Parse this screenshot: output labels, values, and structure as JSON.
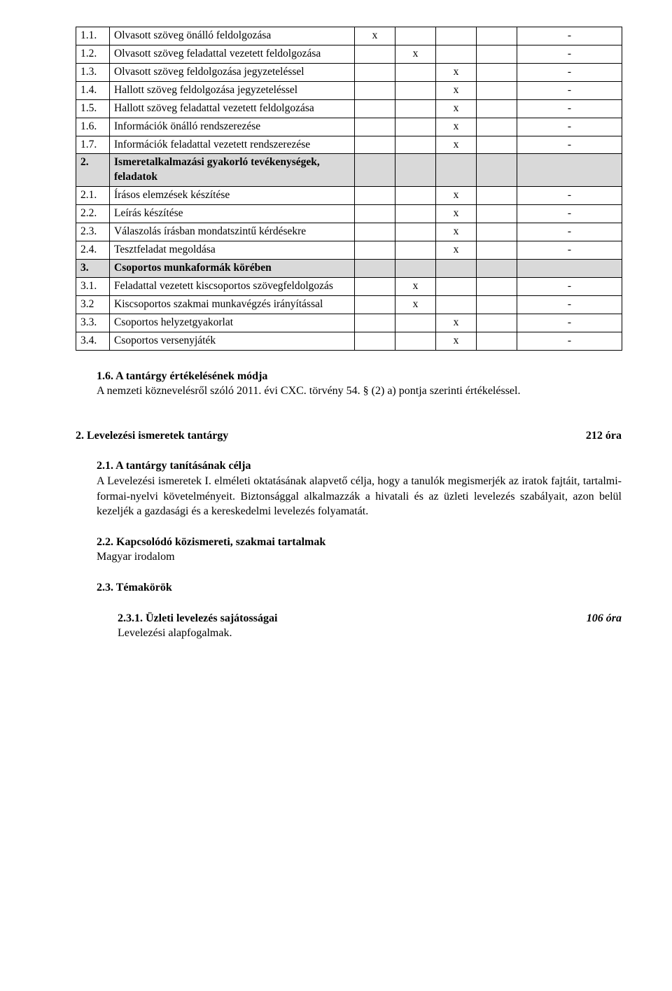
{
  "table": {
    "rows": [
      {
        "num": "1.1.",
        "desc": "Olvasott szöveg önálló feldolgozása",
        "c1": "x",
        "c2": "",
        "c3": "",
        "c4": "",
        "c5": "-"
      },
      {
        "num": "1.2.",
        "desc": "Olvasott szöveg feladattal vezetett feldolgozása",
        "c1": "",
        "c2": "x",
        "c3": "",
        "c4": "",
        "c5": "-"
      },
      {
        "num": "1.3.",
        "desc": "Olvasott szöveg feldolgozása jegyzeteléssel",
        "c1": "",
        "c2": "",
        "c3": "x",
        "c4": "",
        "c5": "-"
      },
      {
        "num": "1.4.",
        "desc": "Hallott szöveg feldolgozása jegyzeteléssel",
        "c1": "",
        "c2": "",
        "c3": "x",
        "c4": "",
        "c5": "-"
      },
      {
        "num": "1.5.",
        "desc": "Hallott szöveg feladattal vezetett feldolgozása",
        "c1": "",
        "c2": "",
        "c3": "x",
        "c4": "",
        "c5": "-"
      },
      {
        "num": "1.6.",
        "desc": "Információk önálló rendszerezése",
        "c1": "",
        "c2": "",
        "c3": "x",
        "c4": "",
        "c5": "-"
      },
      {
        "num": "1.7.",
        "desc": "Információk feladattal vezetett rendszerezése",
        "c1": "",
        "c2": "",
        "c3": "x",
        "c4": "",
        "c5": "-"
      },
      {
        "shaded": true,
        "num": "2.",
        "desc": "Ismeretalkalmazási gyakorló tevékenységek, feladatok",
        "c1": "",
        "c2": "",
        "c3": "",
        "c4": "",
        "c5": ""
      },
      {
        "num": "2.1.",
        "desc": "Írásos elemzések készítése",
        "c1": "",
        "c2": "",
        "c3": "x",
        "c4": "",
        "c5": "-"
      },
      {
        "num": "2.2.",
        "desc": "Leírás készítése",
        "c1": "",
        "c2": "",
        "c3": "x",
        "c4": "",
        "c5": "-"
      },
      {
        "num": "2.3.",
        "desc": "Válaszolás írásban mondatszintű kérdésekre",
        "c1": "",
        "c2": "",
        "c3": "x",
        "c4": "",
        "c5": "-"
      },
      {
        "num": "2.4.",
        "desc": "Tesztfeladat megoldása",
        "c1": "",
        "c2": "",
        "c3": "x",
        "c4": "",
        "c5": "-"
      },
      {
        "shaded": true,
        "num": "3.",
        "desc": "Csoportos munkaformák körében",
        "c1": "",
        "c2": "",
        "c3": "",
        "c4": "",
        "c5": ""
      },
      {
        "num": "3.1.",
        "desc": "Feladattal vezetett kiscsoportos szövegfeldolgozás",
        "c1": "",
        "c2": "x",
        "c3": "",
        "c4": "",
        "c5": "-"
      },
      {
        "num": "3.2",
        "desc": "Kiscsoportos szakmai munkavégzés irányítással",
        "c1": "",
        "c2": "x",
        "c3": "",
        "c4": "",
        "c5": "-"
      },
      {
        "num": "3.3.",
        "desc": "Csoportos helyzetgyakorlat",
        "c1": "",
        "c2": "",
        "c3": "x",
        "c4": "",
        "c5": "-"
      },
      {
        "num": "3.4.",
        "desc": "Csoportos versenyjáték",
        "c1": "",
        "c2": "",
        "c3": "x",
        "c4": "",
        "c5": "-"
      }
    ]
  },
  "s16": {
    "heading": "1.6. A tantárgy értékelésének módja",
    "body": "A nemzeti köznevelésről szóló 2011. évi CXC. törvény 54. § (2) a) pontja szerinti értékeléssel."
  },
  "s2": {
    "heading": "2.  Levelezési ismeretek tantárgy",
    "hours": "212 óra"
  },
  "s21": {
    "heading": "2.1. A tantárgy tanításának célja",
    "body": "A Levelezési ismeretek I. elméleti oktatásának alapvető célja, hogy a tanulók megismerjék az iratok fajtáit, tartalmi-formai-nyelvi követelményeit. Biztonsággal alkalmazzák a hivatali és az üzleti levelezés szabályait, azon belül kezeljék a gazdasági és a kereskedelmi levelezés folyamatát."
  },
  "s22": {
    "heading": "2.2. Kapcsolódó közismereti, szakmai tartalmak",
    "body": "Magyar irodalom"
  },
  "s23": {
    "heading": "2.3. Témakörök"
  },
  "s231": {
    "heading": "2.3.1.   Üzleti levelezés sajátosságai",
    "hours": "106 óra",
    "body": "Levelezési alapfogalmak."
  }
}
